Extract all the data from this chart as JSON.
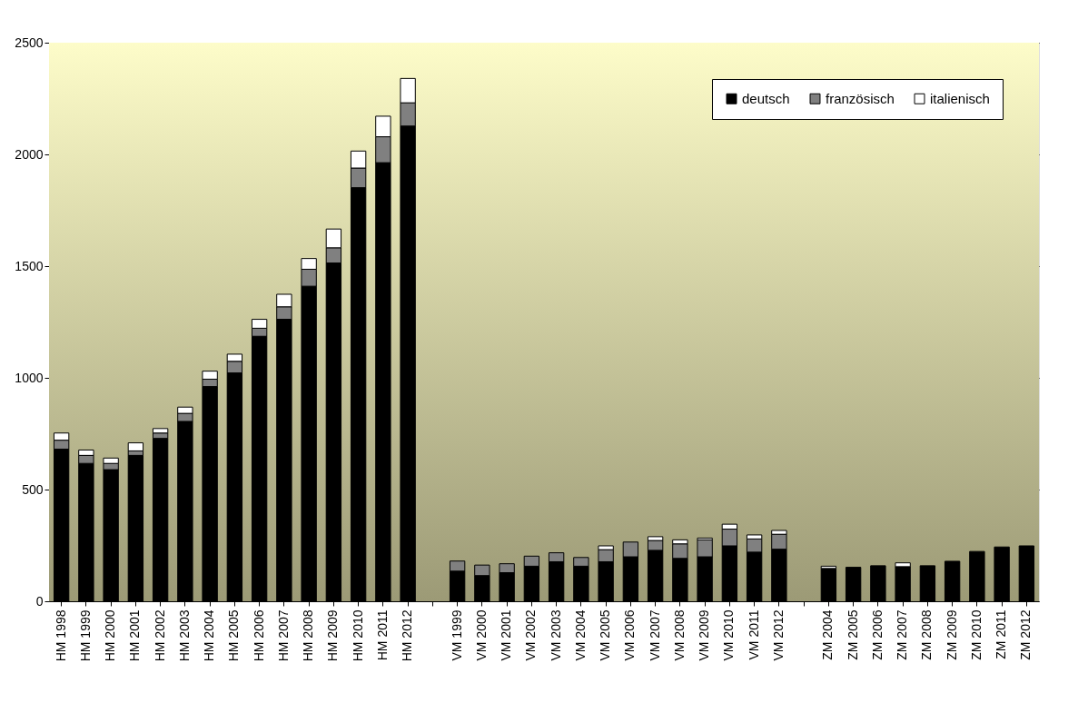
{
  "chart_data": {
    "type": "bar",
    "stacked": true,
    "categories": [
      "HM 1998",
      "HM 1999",
      "HM 2000",
      "HM 2001",
      "HM 2002",
      "HM 2003",
      "HM 2004",
      "HM 2005",
      "HM 2006",
      "HM 2007",
      "HM 2008",
      "HM 2009",
      "HM 2010",
      "HM 2011",
      "HM 2012",
      null,
      "VM 1999",
      "VM 2000",
      "VM 2001",
      "VM 2002",
      "VM 2003",
      "VM 2004",
      "VM 2005",
      "VM 2006",
      "VM 2007",
      "VM 2008",
      "VM 2009",
      "VM 2010",
      "VM 2011",
      "VM 2012",
      null,
      "ZM 2004",
      "ZM 2005",
      "ZM 2006",
      "ZM 2007",
      "ZM 2008",
      "ZM 2009",
      "ZM 2010",
      "ZM 2011",
      "ZM 2012"
    ],
    "series": [
      {
        "name": "deutsch",
        "color": "#000000",
        "values": [
          681,
          617,
          589,
          653,
          729,
          805,
          961,
          1022,
          1186,
          1262,
          1410,
          1514,
          1851,
          1963,
          2127,
          null,
          135,
          115,
          128,
          157,
          177,
          157,
          177,
          199,
          228,
          192,
          199,
          248,
          220,
          233,
          null,
          144,
          152,
          159,
          155,
          159,
          179,
          223,
          243,
          248
        ]
      },
      {
        "name": "französisch",
        "color": "#808080",
        "values": [
          40,
          36,
          28,
          20,
          24,
          36,
          33,
          52,
          36,
          56,
          76,
          68,
          88,
          116,
          104,
          null,
          45,
          47,
          40,
          45,
          40,
          39,
          54,
          66,
          44,
          65,
          76,
          75,
          59,
          67,
          null,
          3,
          null,
          null,
          null,
          null,
          null,
          null,
          null,
          null
        ]
      },
      {
        "name": "italienisch",
        "color": "#ffffff",
        "values": [
          32,
          24,
          24,
          36,
          20,
          28,
          36,
          32,
          40,
          56,
          48,
          84,
          76,
          92,
          109,
          null,
          null,
          null,
          null,
          null,
          null,
          null,
          17,
          null,
          17,
          18,
          8,
          22,
          18,
          17,
          null,
          10,
          null,
          null,
          17,
          null,
          null,
          null,
          null,
          null
        ]
      }
    ],
    "ylim": [
      0,
      2500
    ],
    "yticks": [
      0,
      500,
      1000,
      1500,
      2000,
      2500
    ],
    "grid": "y",
    "legend": "top right"
  }
}
